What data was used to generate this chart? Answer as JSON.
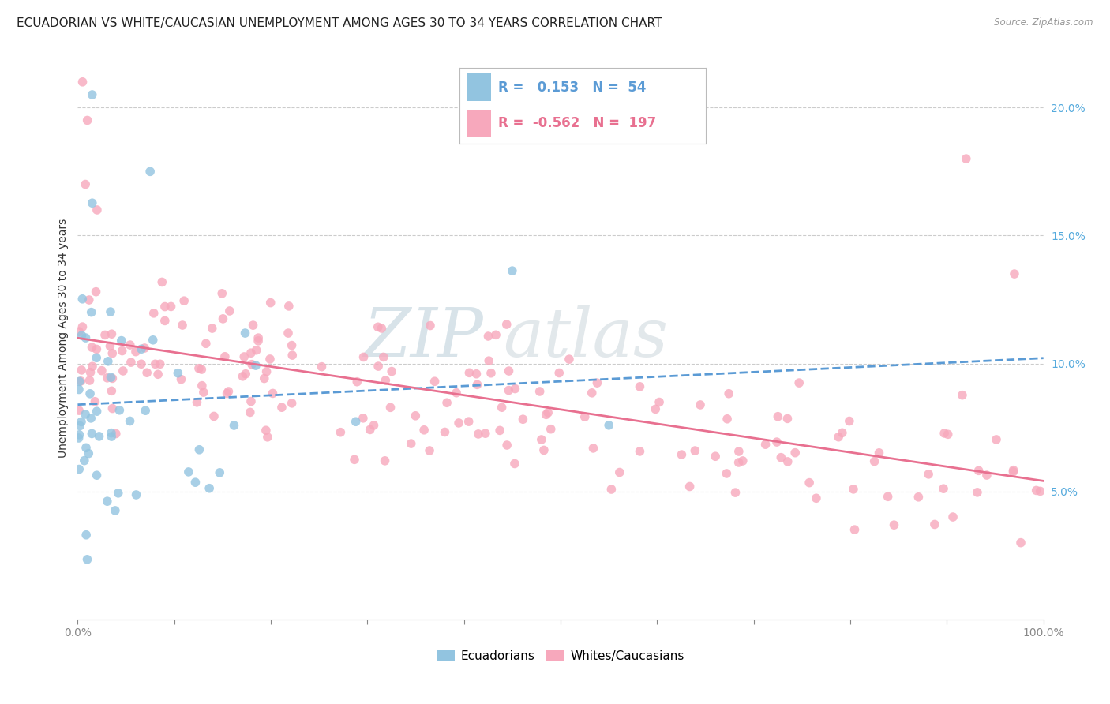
{
  "title": "ECUADORIAN VS WHITE/CAUCASIAN UNEMPLOYMENT AMONG AGES 30 TO 34 YEARS CORRELATION CHART",
  "source": "Source: ZipAtlas.com",
  "ylabel": "Unemployment Among Ages 30 to 34 years",
  "watermark_line1": "ZIP",
  "watermark_line2": "atlas",
  "r_ecuadorian": 0.153,
  "n_ecuadorian": 54,
  "r_caucasian": -0.562,
  "n_caucasian": 197,
  "color_ecuadorian": "#92C4E0",
  "color_caucasian": "#F7A8BC",
  "color_line_ecuadorian": "#5B9BD5",
  "color_line_caucasian": "#E87090",
  "legend_labels": [
    "Ecuadorians",
    "Whites/Caucasians"
  ],
  "xlim": [
    0,
    100
  ],
  "ylim_bottom": 0,
  "ylim_top": 22,
  "yticks_right": [
    5,
    10,
    15,
    20
  ],
  "ytick_labels_right": [
    "5.0%",
    "10.0%",
    "15.0%",
    "20.0%"
  ],
  "right_tick_color": "#55AADD",
  "grid_color": "#cccccc",
  "title_fontsize": 11,
  "tick_fontsize": 10,
  "legend_fontsize": 11,
  "background_color": "#ffffff",
  "seed": 77
}
